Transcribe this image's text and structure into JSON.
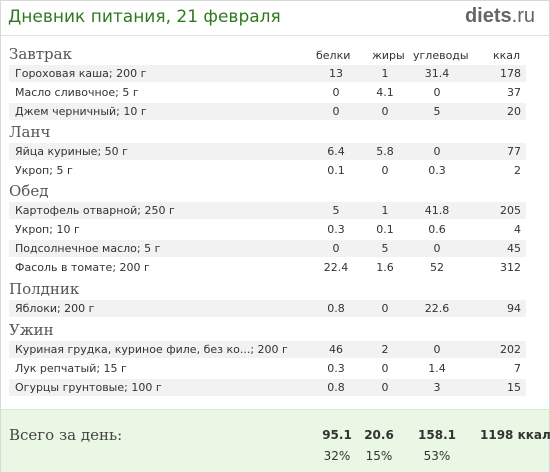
{
  "header": {
    "title": "Дневник питания, 21 февраля",
    "logo_brand": "diets",
    "logo_tld": ".ru"
  },
  "columns": {
    "protein": "белки",
    "fat": "жиры",
    "carbs": "углеводы",
    "kcal": "ккал"
  },
  "meals": [
    {
      "name": "Завтрак",
      "items": [
        {
          "name": "Гороховая каша; 200 г",
          "protein": "13",
          "fat": "1",
          "carbs": "31.4",
          "kcal": "178"
        },
        {
          "name": "Масло сливочное; 5 г",
          "protein": "0",
          "fat": "4.1",
          "carbs": "0",
          "kcal": "37"
        },
        {
          "name": "Джем черничный; 10 г",
          "protein": "0",
          "fat": "0",
          "carbs": "5",
          "kcal": "20"
        }
      ]
    },
    {
      "name": "Ланч",
      "items": [
        {
          "name": "Яйца куриные; 50 г",
          "protein": "6.4",
          "fat": "5.8",
          "carbs": "0",
          "kcal": "77"
        },
        {
          "name": "Укроп; 5 г",
          "protein": "0.1",
          "fat": "0",
          "carbs": "0.3",
          "kcal": "2"
        }
      ]
    },
    {
      "name": "Обед",
      "items": [
        {
          "name": "Картофель отварной; 250 г",
          "protein": "5",
          "fat": "1",
          "carbs": "41.8",
          "kcal": "205"
        },
        {
          "name": "Укроп; 10 г",
          "protein": "0.3",
          "fat": "0.1",
          "carbs": "0.6",
          "kcal": "4"
        },
        {
          "name": "Подсолнечное масло; 5 г",
          "protein": "0",
          "fat": "5",
          "carbs": "0",
          "kcal": "45"
        },
        {
          "name": "Фасоль в томате; 200 г",
          "protein": "22.4",
          "fat": "1.6",
          "carbs": "52",
          "kcal": "312"
        }
      ]
    },
    {
      "name": "Полдник",
      "items": [
        {
          "name": "Яблоки; 200 г",
          "protein": "0.8",
          "fat": "0",
          "carbs": "22.6",
          "kcal": "94"
        }
      ]
    },
    {
      "name": "Ужин",
      "items": [
        {
          "name": "Куриная грудка, куриное филе, без ко...; 200 г",
          "protein": "46",
          "fat": "2",
          "carbs": "0",
          "kcal": "202"
        },
        {
          "name": "Лук репчатый; 15 г",
          "protein": "0.3",
          "fat": "0",
          "carbs": "1.4",
          "kcal": "7"
        },
        {
          "name": "Огурцы грунтовые; 100 г",
          "protein": "0.8",
          "fat": "0",
          "carbs": "3",
          "kcal": "15"
        }
      ]
    }
  ],
  "totals": {
    "label": "Всего за день:",
    "protein": "95.1",
    "fat": "20.6",
    "carbs": "158.1",
    "kcal": "1198 ккал",
    "protein_pct": "32%",
    "fat_pct": "15%",
    "carbs_pct": "53%"
  }
}
